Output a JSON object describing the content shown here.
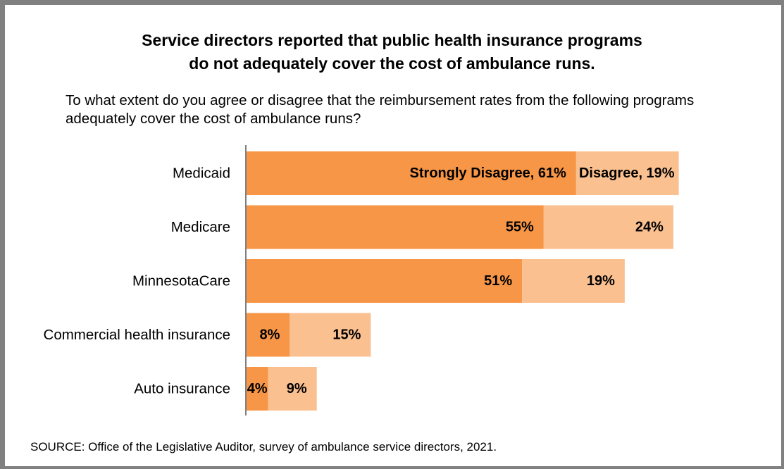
{
  "chart_data": {
    "type": "bar",
    "orientation": "horizontal",
    "stacked": true,
    "title": "Service directors reported that public health insurance programs\ndo not adequately cover the cost of ambulance runs.",
    "subtitle": "To what extent do you agree or disagree that the reimbursement rates from the following programs adequately cover the cost of ambulance runs?",
    "categories": [
      "Medicaid",
      "Medicare",
      "MinnesotaCare",
      "Commercial health insurance",
      "Auto insurance"
    ],
    "series": [
      {
        "name": "Strongly Disagree",
        "values": [
          61,
          55,
          51,
          8,
          4
        ],
        "labels": [
          "Strongly Disagree, 61%",
          "55%",
          "51%",
          "8%",
          "4%"
        ],
        "color": "#F79646"
      },
      {
        "name": "Disagree",
        "values": [
          19,
          24,
          19,
          15,
          9
        ],
        "labels": [
          "Disagree, 19%",
          "24%",
          "19%",
          "15%",
          "9%"
        ],
        "color": "#FAC090"
      }
    ],
    "xlim": [
      0,
      100
    ],
    "grid": false,
    "legend": "none",
    "source": "SOURCE:  Office of the Legislative Auditor, survey of ambulance service directors, 2021."
  }
}
